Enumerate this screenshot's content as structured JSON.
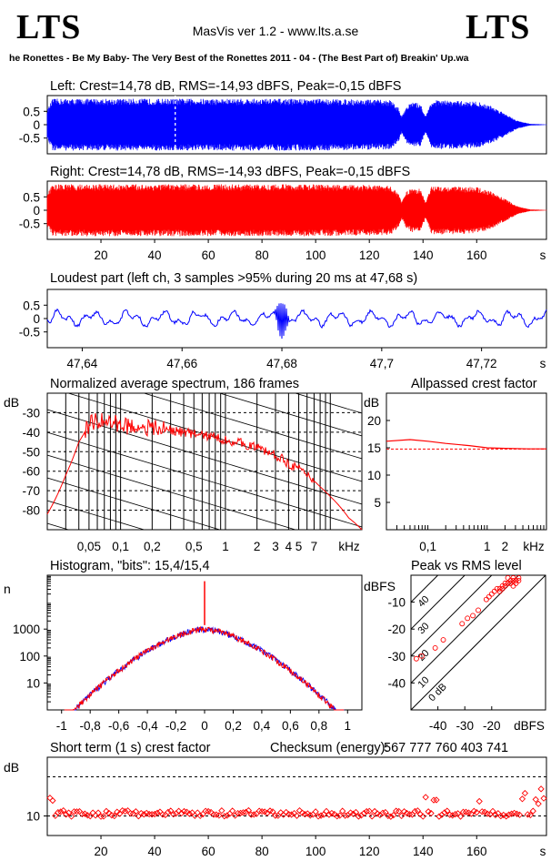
{
  "header": {
    "logo_left": "LTS",
    "logo_right": "LTS",
    "app_title": "MasVis ver 1.2 - www.lts.a.se",
    "track_title": "he Ronettes - Be My Baby- The Very Best of the Ronettes 2011 - 04 - (The Best Part of) Breakin' Up.wa"
  },
  "colors": {
    "left": "#0000ff",
    "right": "#ff0000",
    "grid": "#000000",
    "dash": "#000000"
  },
  "chart_data": [
    {
      "id": "left",
      "type": "area",
      "title": "Left: Crest=14,78 dB, RMS=-14,93 dBFS, Peak=-0,15 dBFS",
      "yticks": [
        "0.5",
        "0",
        "-0.5"
      ],
      "ylim": [
        -1,
        1
      ],
      "xlim": [
        0,
        186
      ],
      "marker_x": 47.68,
      "envelope": {
        "x": [
          0,
          2,
          5,
          20,
          40,
          60,
          80,
          100,
          120,
          128,
          131,
          132,
          134,
          136,
          139,
          141,
          143,
          145,
          150,
          160,
          165,
          170,
          175,
          180,
          186
        ],
        "peak": [
          0.55,
          0.95,
          0.95,
          0.95,
          0.95,
          0.95,
          0.95,
          0.95,
          0.92,
          0.9,
          0.6,
          0.3,
          0.7,
          0.82,
          0.78,
          0.3,
          0.85,
          0.9,
          0.88,
          0.85,
          0.7,
          0.45,
          0.15,
          0.03,
          0.01
        ]
      }
    },
    {
      "id": "right",
      "type": "area",
      "title": "Right: Crest=14,78 dB, RMS=-14,93 dBFS, Peak=-0,15 dBFS",
      "yticks": [
        "0.5",
        "0",
        "-0.5"
      ],
      "ylim": [
        -1,
        1
      ],
      "xlim": [
        0,
        186
      ],
      "xticks": [
        20,
        40,
        60,
        80,
        100,
        120,
        140,
        160
      ],
      "xunit": "s",
      "envelope": {
        "x": [
          0,
          2,
          5,
          20,
          40,
          60,
          80,
          100,
          120,
          128,
          131,
          132,
          134,
          136,
          139,
          141,
          143,
          145,
          150,
          160,
          165,
          170,
          175,
          180,
          186
        ],
        "peak": [
          0.6,
          0.95,
          0.95,
          0.95,
          0.95,
          0.95,
          0.95,
          0.95,
          0.92,
          0.9,
          0.6,
          0.3,
          0.7,
          0.82,
          0.78,
          0.3,
          0.85,
          0.9,
          0.88,
          0.85,
          0.7,
          0.45,
          0.15,
          0.03,
          0.01
        ]
      }
    },
    {
      "id": "loudest",
      "type": "line",
      "title": "Loudest part (left  ch, 3 samples >95% during 20 ms at 47,68 s)",
      "yticks": [
        "0.5",
        "0",
        "-0.5"
      ],
      "ylim": [
        -1,
        1
      ],
      "xlim": [
        47.633,
        47.733
      ],
      "xticks": [
        "47,64",
        "47,66",
        "47,68",
        "47,7",
        "47,72"
      ],
      "xtick_values": [
        47.64,
        47.66,
        47.68,
        47.7,
        47.72
      ],
      "xunit": "s"
    },
    {
      "id": "spectrum",
      "type": "line",
      "title": "Normalized average spectrum, 186 frames",
      "ylabel": "dB",
      "yticks": [
        -30,
        -40,
        -50,
        -60,
        -70,
        -80
      ],
      "ylim": [
        -90,
        -20
      ],
      "xscale": "log",
      "xlim_khz": [
        0.02,
        20
      ],
      "xticks": [
        "0,05",
        "0,1",
        "0,2",
        "0,5",
        "1",
        "2",
        "3",
        "4",
        "5",
        "7"
      ],
      "xtick_values": [
        0.05,
        0.1,
        0.2,
        0.5,
        1,
        2,
        3,
        4,
        5,
        7
      ],
      "xunit": "kHz",
      "curve": {
        "f": [
          0.02,
          0.03,
          0.04,
          0.05,
          0.06,
          0.08,
          0.1,
          0.12,
          0.15,
          0.2,
          0.3,
          0.5,
          0.7,
          1,
          1.5,
          2,
          3,
          4,
          5,
          6,
          7,
          8,
          10,
          15,
          20
        ],
        "db": [
          -82,
          -62,
          -45,
          -36,
          -34,
          -35,
          -36,
          -37,
          -37,
          -38,
          -39,
          -41,
          -42,
          -44,
          -46,
          -48,
          -52,
          -56,
          -59,
          -62,
          -65,
          -68,
          -73,
          -84,
          -90
        ]
      }
    },
    {
      "id": "crest",
      "type": "line",
      "title": "Allpassed crest factor",
      "ylabel": "dB",
      "yticks": [
        20,
        15,
        10,
        5
      ],
      "ylim": [
        0,
        25
      ],
      "xscale": "log",
      "xticks": [
        "0,1",
        "1",
        "2"
      ],
      "xtick_values": [
        0.1,
        1,
        2
      ],
      "xunit": "kHz",
      "reference_db": 14.78,
      "curve": {
        "f": [
          0.02,
          0.05,
          0.1,
          0.2,
          0.5,
          1,
          2,
          5,
          10
        ],
        "db": [
          16.2,
          16.5,
          16.2,
          15.8,
          15.4,
          15.0,
          14.9,
          14.8,
          14.8
        ]
      }
    },
    {
      "id": "histogram",
      "type": "line",
      "title": "Histogram, \"bits\": 15,4/15,4",
      "ylabel": "n",
      "yscale": "log",
      "yticks": [
        "1000",
        "100",
        "10"
      ],
      "ytick_values": [
        1000,
        100,
        10
      ],
      "xlim": [
        -1.1,
        1.1
      ],
      "xticks": [
        "-1",
        "-0,8",
        "-0,6",
        "-0,4",
        "-0,2",
        "0",
        "0,2",
        "0,4",
        "0,6",
        "0,8",
        "1"
      ],
      "xtick_values": [
        -1,
        -0.8,
        -0.6,
        -0.4,
        -0.2,
        0,
        0.2,
        0.4,
        0.6,
        0.8,
        1
      ],
      "peak_count": 60000
    },
    {
      "id": "peakrms",
      "type": "scatter",
      "title": "Peak vs RMS level",
      "ylabel": "dBFS",
      "xlabel": "dBFS",
      "yticks": [
        -10,
        -20,
        -30,
        -40
      ],
      "xticks": [
        -40,
        -30,
        -20
      ],
      "lim": [
        -50,
        0
      ],
      "diagonal_labels": [
        "40",
        "30",
        "20",
        "10",
        "0 dB"
      ],
      "points": [
        [
          -48,
          -31
        ],
        [
          -46,
          -30
        ],
        [
          -41,
          -27
        ],
        [
          -38,
          -24
        ],
        [
          -31,
          -18
        ],
        [
          -29,
          -16
        ],
        [
          -27,
          -15
        ],
        [
          -25,
          -13
        ],
        [
          -22,
          -9
        ],
        [
          -21,
          -8
        ],
        [
          -20,
          -7
        ],
        [
          -19,
          -6
        ],
        [
          -18,
          -5
        ],
        [
          -17,
          -5
        ],
        [
          -16,
          -4
        ],
        [
          -15,
          -3
        ],
        [
          -14,
          -3
        ],
        [
          -13,
          -2
        ],
        [
          -12,
          -2
        ],
        [
          -12,
          -1
        ],
        [
          -11,
          -2
        ],
        [
          -11,
          -3
        ],
        [
          -10,
          -2
        ],
        [
          -13,
          -3
        ],
        [
          -15,
          -4
        ],
        [
          -16,
          -5
        ],
        [
          -17,
          -6
        ],
        [
          -14,
          -1
        ],
        [
          -12,
          -4
        ],
        [
          -10,
          -1
        ]
      ]
    },
    {
      "id": "shortcrest",
      "type": "scatter",
      "title": "Short term (1 s) crest factor",
      "checksum_label": "Checksum (energy):",
      "checksum_value": "567 777 760 403 741",
      "ylabel": "dB",
      "yticks": [
        "10"
      ],
      "ytick_values": [
        10
      ],
      "ylim": [
        5,
        25
      ],
      "xlim": [
        0,
        186
      ],
      "xticks": [
        20,
        40,
        60,
        80,
        100,
        120,
        140,
        160
      ],
      "xunit": "s",
      "dashed_levels": [
        10,
        20
      ],
      "baseline_db": 10.6
    }
  ]
}
